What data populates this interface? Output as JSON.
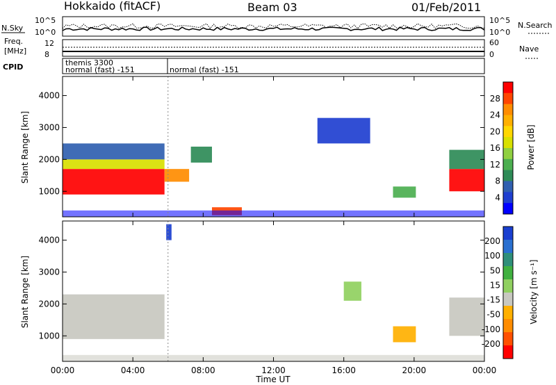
{
  "header": {
    "title": "Hokkaido (fitACF)",
    "beam": "Beam 03",
    "date": "01/Feb/2011"
  },
  "panels": {
    "nsky": {
      "left_label": "N.Sky",
      "right_label": "N.Search",
      "left_ticks": [
        "10^5",
        "10^0"
      ],
      "right_ticks": [
        "10^5",
        "10^0"
      ]
    },
    "freq": {
      "left_label_1": "Freq.",
      "left_label_2": "[MHz]",
      "right_label": "Nave",
      "left_ticks": [
        "12",
        "8"
      ],
      "right_ticks": [
        "60",
        "0"
      ]
    },
    "cpid": {
      "label": "CPID",
      "segment1_line1": "themis 3300",
      "segment1_line2": "normal (fast) -151",
      "segment2": "normal (fast) -151"
    }
  },
  "chart_data": [
    {
      "type": "heatmap",
      "name": "power",
      "ylabel": "Slant Range [km]",
      "xlabel": "",
      "yticks": [
        "1000",
        "2000",
        "3000",
        "4000"
      ],
      "ylim": [
        200,
        4600
      ],
      "colorbar_label": "Power [dB]",
      "colorbar_ticks": [
        "28",
        "24",
        "20",
        "16",
        "12",
        "8",
        "4"
      ],
      "colorbar_colors": [
        "#ff0000",
        "#ff4500",
        "#ff8c00",
        "#ffb000",
        "#ffd700",
        "#d8e000",
        "#90d040",
        "#4caf50",
        "#2e8b57",
        "#3060b0",
        "#1f3fd0",
        "#0000ff"
      ],
      "regions": [
        {
          "x0": 0,
          "x1": 5.8,
          "y0": 900,
          "y1": 1700,
          "value": 28
        },
        {
          "x0": 0,
          "x1": 5.8,
          "y0": 1700,
          "y1": 2000,
          "value": 18
        },
        {
          "x0": 0,
          "x1": 5.8,
          "y0": 2000,
          "y1": 2500,
          "value": 10
        },
        {
          "x0": 5.8,
          "x1": 7.2,
          "y0": 1300,
          "y1": 1700,
          "value": 24
        },
        {
          "x0": 8.5,
          "x1": 10.2,
          "y0": 250,
          "y1": 500,
          "value": 26
        },
        {
          "x0": 18.8,
          "x1": 20.1,
          "y0": 800,
          "y1": 1150,
          "value": 14
        },
        {
          "x0": 22.0,
          "x1": 24,
          "y0": 1000,
          "y1": 1700,
          "value": 27
        },
        {
          "x0": 22.0,
          "x1": 24,
          "y0": 1700,
          "y1": 2300,
          "value": 12
        },
        {
          "x0": 14.5,
          "x1": 17.5,
          "y0": 2500,
          "y1": 3300,
          "value": 8
        },
        {
          "x0": 7.3,
          "x1": 8.5,
          "y0": 1900,
          "y1": 2400,
          "value": 12
        }
      ]
    },
    {
      "type": "heatmap",
      "name": "velocity",
      "ylabel": "Slant Range [km]",
      "xlabel": "Time UT",
      "yticks": [
        "1000",
        "2000",
        "3000",
        "4000"
      ],
      "ylim": [
        200,
        4600
      ],
      "colorbar_label": "Velocity [m s⁻¹]",
      "colorbar_ticks": [
        "200",
        "100",
        "50",
        "15",
        "-15",
        "-50",
        "-100",
        "-200"
      ],
      "colorbar_colors": [
        "#1a3fd0",
        "#2a70d0",
        "#2f8f7a",
        "#40b040",
        "#90d060",
        "#c8c8c0",
        "#ffb000",
        "#ff8c00",
        "#ff5000",
        "#ff0000"
      ],
      "regions": [
        {
          "x0": 0,
          "x1": 5.8,
          "y0": 900,
          "y1": 2300,
          "value": 0
        },
        {
          "x0": 22.0,
          "x1": 24,
          "y0": 1000,
          "y1": 2200,
          "value": 0
        },
        {
          "x0": 18.8,
          "x1": 20.1,
          "y0": 800,
          "y1": 1300,
          "value": -70
        },
        {
          "x0": 5.9,
          "x1": 6.2,
          "y0": 4000,
          "y1": 4500,
          "value": 200
        },
        {
          "x0": 16.0,
          "x1": 17.0,
          "y0": 2100,
          "y1": 2700,
          "value": 40
        }
      ]
    }
  ],
  "xaxis": {
    "label": "Time UT",
    "ticks": [
      "00:00",
      "04:00",
      "08:00",
      "12:00",
      "16:00",
      "20:00",
      "00:00"
    ]
  }
}
